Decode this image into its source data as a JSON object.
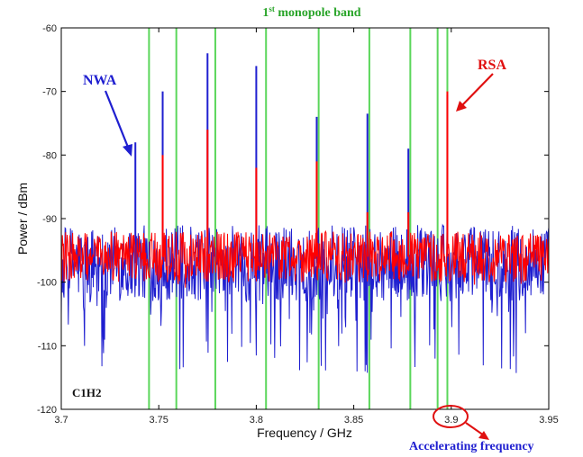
{
  "chart_data": {
    "type": "line",
    "title": "1st monopole band",
    "title_base": "1",
    "title_sup": "st",
    "title_rest": " monopole band",
    "xlabel": "Frequency / GHz",
    "ylabel": "Power / dBm",
    "xlim": [
      3.7,
      3.95
    ],
    "ylim": [
      -120,
      -60
    ],
    "xticks": [
      "3.7",
      "3.75",
      "3.8",
      "3.85",
      "3.9",
      "3.95"
    ],
    "xtick_values": [
      3.7,
      3.75,
      3.8,
      3.85,
      3.9,
      3.95
    ],
    "yticks": [
      "-60",
      "-70",
      "-80",
      "-90",
      "-100",
      "-110",
      "-120"
    ],
    "ytick_values": [
      -60,
      -70,
      -80,
      -90,
      -100,
      -110,
      -120
    ],
    "grid": false,
    "series": [
      {
        "name": "NWA",
        "color": "#1f1fd0",
        "noise_floor_mean": -97,
        "noise_floor_range": [
          -115,
          -91
        ],
        "peaks": [
          {
            "x": 3.738,
            "y": -78
          },
          {
            "x": 3.752,
            "y": -70
          },
          {
            "x": 3.775,
            "y": -64
          },
          {
            "x": 3.8,
            "y": -66
          },
          {
            "x": 3.831,
            "y": -74
          },
          {
            "x": 3.857,
            "y": -73.5
          },
          {
            "x": 3.878,
            "y": -79
          },
          {
            "x": 3.898,
            "y": -70.5
          }
        ]
      },
      {
        "name": "RSA",
        "color": "#ff0000",
        "noise_floor_mean": -96,
        "noise_floor_range": [
          -101,
          -91
        ],
        "peaks": [
          {
            "x": 3.752,
            "y": -80
          },
          {
            "x": 3.775,
            "y": -76
          },
          {
            "x": 3.8,
            "y": -82
          },
          {
            "x": 3.831,
            "y": -81
          },
          {
            "x": 3.857,
            "y": -89
          },
          {
            "x": 3.878,
            "y": -89
          },
          {
            "x": 3.898,
            "y": -70
          }
        ]
      }
    ],
    "band_lines": {
      "color": "#5bd65b",
      "x": [
        3.745,
        3.759,
        3.779,
        3.805,
        3.832,
        3.858,
        3.879,
        3.893,
        3.898
      ]
    },
    "annotations": {
      "nwa_label": "NWA",
      "nwa_color": "#1f1fd0",
      "rsa_label": "RSA",
      "rsa_color": "#e01010",
      "case_label": "C1H2",
      "accel_label": "Accelerating frequency",
      "accel_color": "#1f1fd0",
      "circle_color": "#e01010",
      "title_color": "#2aa52a"
    }
  }
}
